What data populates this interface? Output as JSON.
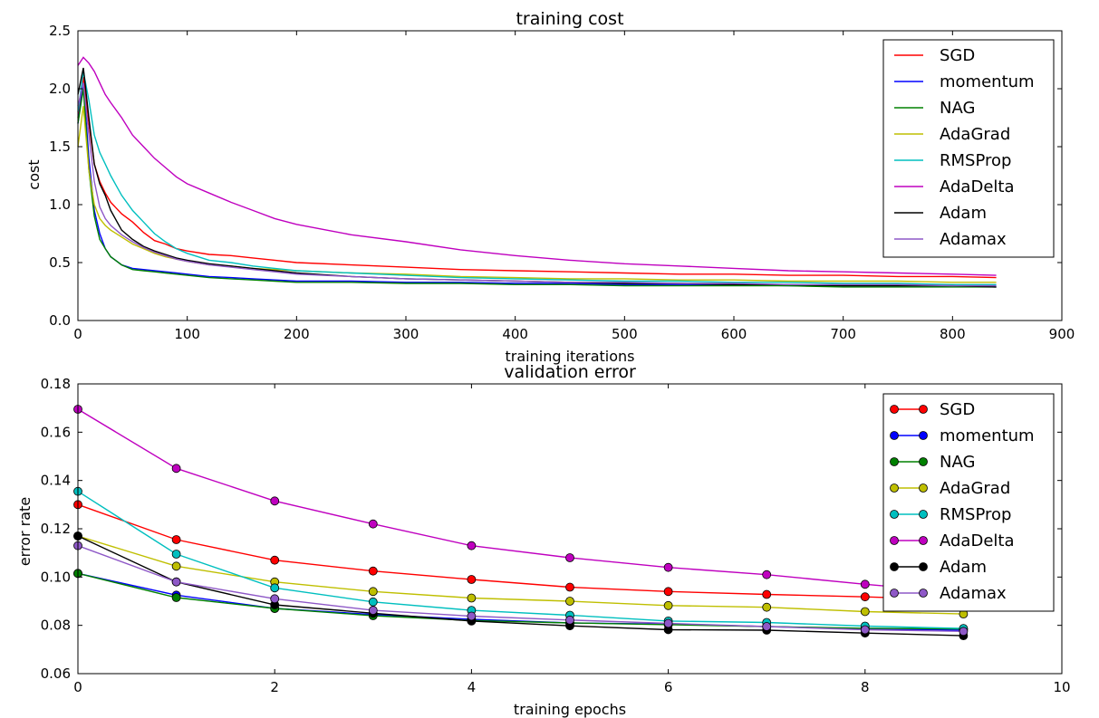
{
  "colors": {
    "SGD": "#ff0000",
    "momentum": "#0000ff",
    "NAG": "#008000",
    "AdaGrad": "#bfbf00",
    "RMSProp": "#00bfbf",
    "AdaDelta": "#bf00bf",
    "Adam": "#000000",
    "Adamax": "#8e58c7"
  },
  "chart_data": [
    {
      "type": "line",
      "title": "training cost",
      "xlabel": "training iterations",
      "ylabel": "cost",
      "xlim": [
        0,
        900
      ],
      "ylim": [
        0,
        2.5
      ],
      "xticks": [
        "0",
        "100",
        "200",
        "300",
        "400",
        "500",
        "600",
        "700",
        "800",
        "900"
      ],
      "yticks": [
        "0.0",
        "0.5",
        "1.0",
        "1.5",
        "2.0",
        "2.5"
      ],
      "legend_position": "top-right",
      "x": [
        0,
        5,
        10,
        15,
        20,
        25,
        30,
        40,
        50,
        60,
        70,
        80,
        90,
        100,
        120,
        140,
        160,
        180,
        200,
        250,
        300,
        350,
        400,
        450,
        500,
        550,
        600,
        650,
        700,
        750,
        800,
        840
      ],
      "series": [
        {
          "name": "SGD",
          "values": [
            1.75,
            2.1,
            1.7,
            1.35,
            1.2,
            1.1,
            1.02,
            0.92,
            0.85,
            0.76,
            0.69,
            0.66,
            0.62,
            0.6,
            0.57,
            0.56,
            0.54,
            0.52,
            0.5,
            0.48,
            0.46,
            0.44,
            0.43,
            0.42,
            0.41,
            0.4,
            0.4,
            0.39,
            0.39,
            0.38,
            0.38,
            0.37
          ]
        },
        {
          "name": "momentum",
          "values": [
            1.7,
            2.05,
            1.4,
            0.95,
            0.75,
            0.62,
            0.55,
            0.48,
            0.45,
            0.44,
            0.43,
            0.42,
            0.41,
            0.4,
            0.38,
            0.37,
            0.36,
            0.35,
            0.34,
            0.34,
            0.33,
            0.33,
            0.32,
            0.32,
            0.31,
            0.31,
            0.31,
            0.3,
            0.3,
            0.3,
            0.3,
            0.29
          ]
        },
        {
          "name": "NAG",
          "values": [
            1.7,
            2.0,
            1.3,
            0.9,
            0.7,
            0.62,
            0.55,
            0.48,
            0.44,
            0.43,
            0.42,
            0.41,
            0.4,
            0.39,
            0.37,
            0.36,
            0.35,
            0.34,
            0.33,
            0.33,
            0.32,
            0.32,
            0.31,
            0.31,
            0.3,
            0.3,
            0.3,
            0.3,
            0.29,
            0.29,
            0.29,
            0.29
          ]
        },
        {
          "name": "AdaGrad",
          "values": [
            1.5,
            1.85,
            1.3,
            1.0,
            0.88,
            0.82,
            0.78,
            0.72,
            0.66,
            0.62,
            0.58,
            0.55,
            0.53,
            0.51,
            0.48,
            0.47,
            0.45,
            0.44,
            0.43,
            0.41,
            0.4,
            0.38,
            0.37,
            0.36,
            0.36,
            0.35,
            0.35,
            0.34,
            0.34,
            0.34,
            0.33,
            0.33
          ]
        },
        {
          "name": "RMSProp",
          "values": [
            1.8,
            2.15,
            1.9,
            1.6,
            1.45,
            1.35,
            1.25,
            1.08,
            0.95,
            0.85,
            0.75,
            0.68,
            0.62,
            0.58,
            0.52,
            0.5,
            0.47,
            0.45,
            0.43,
            0.41,
            0.39,
            0.37,
            0.36,
            0.35,
            0.34,
            0.34,
            0.33,
            0.33,
            0.32,
            0.32,
            0.31,
            0.31
          ]
        },
        {
          "name": "AdaDelta",
          "values": [
            2.2,
            2.27,
            2.22,
            2.15,
            2.05,
            1.95,
            1.88,
            1.75,
            1.6,
            1.5,
            1.4,
            1.32,
            1.24,
            1.18,
            1.1,
            1.02,
            0.95,
            0.88,
            0.83,
            0.74,
            0.68,
            0.61,
            0.56,
            0.52,
            0.49,
            0.47,
            0.45,
            0.43,
            0.42,
            0.41,
            0.4,
            0.39
          ]
        },
        {
          "name": "Adam",
          "values": [
            1.95,
            2.18,
            1.75,
            1.35,
            1.18,
            1.08,
            0.95,
            0.78,
            0.7,
            0.64,
            0.6,
            0.57,
            0.54,
            0.52,
            0.49,
            0.47,
            0.45,
            0.43,
            0.41,
            0.38,
            0.36,
            0.35,
            0.34,
            0.33,
            0.32,
            0.32,
            0.31,
            0.31,
            0.3,
            0.3,
            0.3,
            0.29
          ]
        },
        {
          "name": "Adamax",
          "values": [
            1.85,
            2.05,
            1.6,
            1.2,
            0.98,
            0.88,
            0.82,
            0.74,
            0.68,
            0.63,
            0.59,
            0.56,
            0.53,
            0.51,
            0.48,
            0.46,
            0.44,
            0.42,
            0.4,
            0.38,
            0.36,
            0.35,
            0.34,
            0.33,
            0.33,
            0.32,
            0.32,
            0.31,
            0.31,
            0.31,
            0.3,
            0.3
          ]
        }
      ]
    },
    {
      "type": "line",
      "title": "validation error",
      "xlabel": "training epochs",
      "ylabel": "error rate",
      "xlim": [
        0,
        10
      ],
      "ylim": [
        0.06,
        0.18
      ],
      "xticks": [
        "0",
        "2",
        "4",
        "6",
        "8",
        "10"
      ],
      "yticks": [
        "0.06",
        "0.08",
        "0.10",
        "0.12",
        "0.14",
        "0.16",
        "0.18"
      ],
      "legend_position": "top-right",
      "markers": true,
      "x": [
        0,
        1,
        2,
        3,
        4,
        5,
        6,
        7,
        8,
        9
      ],
      "series": [
        {
          "name": "SGD",
          "values": [
            0.13,
            0.1155,
            0.107,
            0.1025,
            0.099,
            0.0958,
            0.094,
            0.0928,
            0.0918,
            0.0905
          ]
        },
        {
          "name": "momentum",
          "values": [
            0.1015,
            0.0925,
            0.087,
            0.0845,
            0.0825,
            0.081,
            0.0805,
            0.0795,
            0.0785,
            0.078
          ]
        },
        {
          "name": "NAG",
          "values": [
            0.1015,
            0.0915,
            0.087,
            0.084,
            0.082,
            0.081,
            0.0803,
            0.0795,
            0.0788,
            0.0785
          ]
        },
        {
          "name": "AdaGrad",
          "values": [
            0.117,
            0.1045,
            0.098,
            0.094,
            0.0913,
            0.09,
            0.0882,
            0.0875,
            0.0857,
            0.0847
          ]
        },
        {
          "name": "RMSProp",
          "values": [
            0.1355,
            0.1095,
            0.0955,
            0.0897,
            0.0862,
            0.0842,
            0.0818,
            0.0812,
            0.0797,
            0.0787
          ]
        },
        {
          "name": "AdaDelta",
          "values": [
            0.1695,
            0.145,
            0.1315,
            0.122,
            0.113,
            0.108,
            0.104,
            0.101,
            0.097,
            0.0935
          ]
        },
        {
          "name": "Adam",
          "values": [
            0.117,
            0.098,
            0.0885,
            0.085,
            0.0818,
            0.0798,
            0.0782,
            0.078,
            0.0768,
            0.0757
          ]
        },
        {
          "name": "Adamax",
          "values": [
            0.113,
            0.098,
            0.091,
            0.0862,
            0.0838,
            0.0822,
            0.0808,
            0.0795,
            0.0782,
            0.0775
          ]
        }
      ]
    }
  ]
}
